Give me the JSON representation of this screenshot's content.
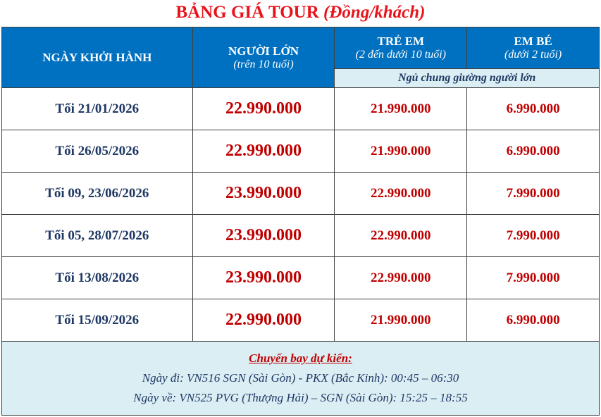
{
  "title": {
    "main": "BẢNG GIÁ TOUR",
    "unit": "(Đồng/khách)"
  },
  "header": {
    "date": "NGÀY KHỞI HÀNH",
    "adult": "NGƯỜI LỚN",
    "adult_sub": "(trên 10 tuổi)",
    "child": "TRẺ EM",
    "child_sub": "(2 đến dưới 10 tuổi)",
    "infant": "EM BÉ",
    "infant_sub": "(dưới 2 tuổi)",
    "shared_bed": "Ngủ chung giường người lớn"
  },
  "rows": [
    {
      "date": "Tối 21/01/2026",
      "adult": "22.990.000",
      "child": "21.990.000",
      "infant": "6.990.000"
    },
    {
      "date": "Tối 26/05/2026",
      "adult": "22.990.000",
      "child": "21.990.000",
      "infant": "6.990.000"
    },
    {
      "date": "Tối 09, 23/06/2026",
      "adult": "23.990.000",
      "child": "22.990.000",
      "infant": "7.990.000"
    },
    {
      "date": "Tối 05, 28/07/2026",
      "adult": "23.990.000",
      "child": "22.990.000",
      "infant": "7.990.000"
    },
    {
      "date": "Tối 13/08/2026",
      "adult": "23.990.000",
      "child": "22.990.000",
      "infant": "7.990.000"
    },
    {
      "date": "Tối 15/09/2026",
      "adult": "22.990.000",
      "child": "21.990.000",
      "infant": "6.990.000"
    }
  ],
  "flights": {
    "title": "Chuyến bay dự kiến:",
    "outbound": "Ngày đi: VN516 SGN (Sài Gòn) - PKX (Bắc Kinh): 00:45 – 06:30",
    "return": "Ngày về: VN525 PVG (Thượng Hải) – SGN (Sài Gòn): 15:25 – 18:55"
  },
  "colors": {
    "header": "#0070c0",
    "title": "#e8131b",
    "price": "#c00000",
    "text": "#1f3864"
  }
}
